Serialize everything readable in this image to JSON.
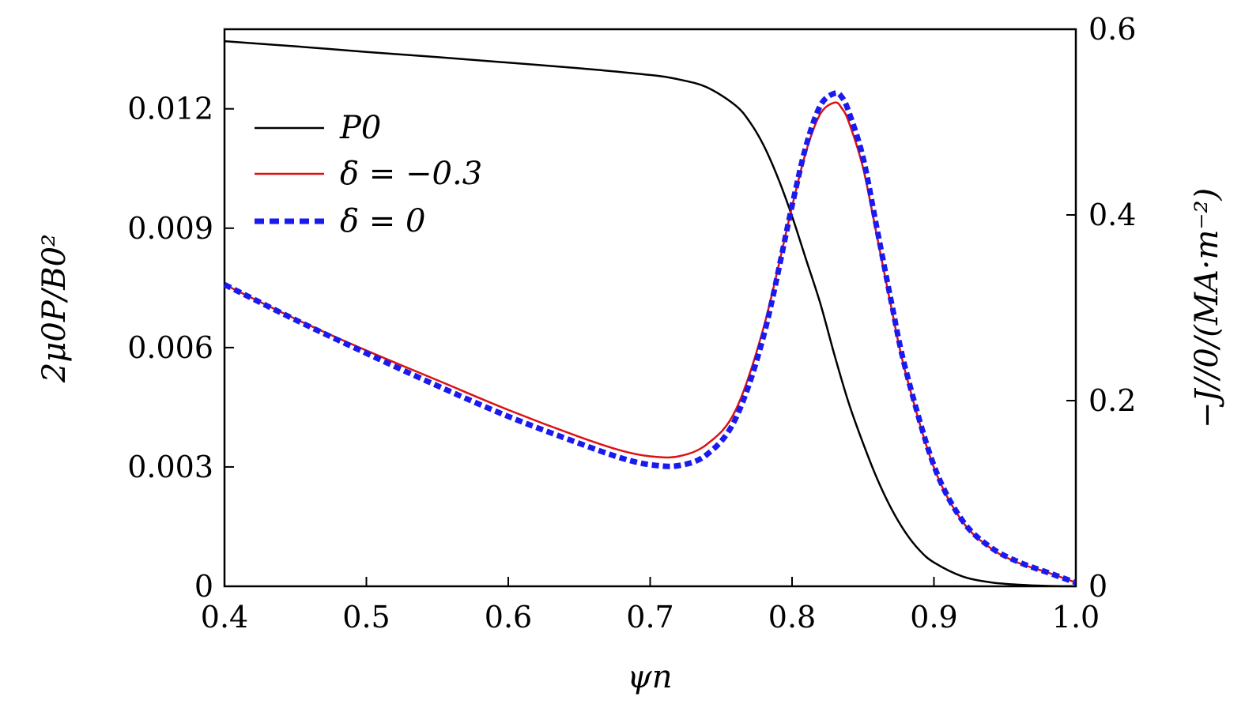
{
  "chart_data": {
    "type": "line",
    "xlabel": "ψn",
    "ylabel_left": "2μ0P/B0²",
    "ylabel_right": "−J//0/(MA·m⁻²)",
    "xlim": [
      0.4,
      1.0
    ],
    "ylim_left": [
      0,
      0.014
    ],
    "ylim_right": [
      0,
      0.6
    ],
    "x_ticks": [
      "0.4",
      "0.5",
      "0.6",
      "0.7",
      "0.8",
      "0.9",
      "1.0"
    ],
    "y_left_ticks": [
      "0",
      "0.003",
      "0.006",
      "0.009",
      "0.012"
    ],
    "y_right_ticks": [
      "0",
      "0.2",
      "0.4",
      "0.6"
    ],
    "grid": false,
    "legend_position": "upper-left",
    "series": [
      {
        "name": "P0",
        "axis": "left",
        "color": "#000000",
        "style": "solid",
        "x": [
          0.4,
          0.45,
          0.5,
          0.55,
          0.6,
          0.65,
          0.7,
          0.72,
          0.74,
          0.76,
          0.77,
          0.78,
          0.79,
          0.8,
          0.81,
          0.82,
          0.83,
          0.84,
          0.85,
          0.86,
          0.87,
          0.88,
          0.89,
          0.9,
          0.92,
          0.94,
          0.96,
          0.98,
          1.0
        ],
        "values": [
          0.0137,
          0.01357,
          0.01343,
          0.0133,
          0.01316,
          0.01302,
          0.01285,
          0.01274,
          0.01254,
          0.01209,
          0.01168,
          0.01108,
          0.01027,
          0.0093,
          0.0082,
          0.0071,
          0.0058,
          0.0046,
          0.0036,
          0.0027,
          0.00195,
          0.00135,
          0.0009,
          0.0006,
          0.00025,
          0.0001,
          4e-05,
          1e-05,
          0.0
        ]
      },
      {
        "name": "δ = −0.3",
        "axis": "right",
        "color": "#dd1111",
        "style": "solid",
        "x": [
          0.4,
          0.45,
          0.5,
          0.55,
          0.6,
          0.65,
          0.68,
          0.7,
          0.72,
          0.74,
          0.76,
          0.78,
          0.8,
          0.81,
          0.82,
          0.83,
          0.835,
          0.84,
          0.85,
          0.86,
          0.87,
          0.88,
          0.9,
          0.92,
          0.94,
          0.96,
          0.98,
          1.0
        ],
        "values": [
          0.325,
          0.288,
          0.254,
          0.222,
          0.19,
          0.161,
          0.146,
          0.14,
          0.14,
          0.153,
          0.189,
          0.279,
          0.409,
          0.469,
          0.509,
          0.521,
          0.515,
          0.5,
          0.451,
          0.376,
          0.3,
          0.23,
          0.128,
          0.07,
          0.041,
          0.025,
          0.015,
          0.004
        ]
      },
      {
        "name": "δ = 0",
        "axis": "right",
        "color": "#1a1aee",
        "style": "dashed",
        "x": [
          0.4,
          0.45,
          0.5,
          0.55,
          0.6,
          0.65,
          0.68,
          0.7,
          0.72,
          0.74,
          0.76,
          0.78,
          0.8,
          0.81,
          0.82,
          0.83,
          0.835,
          0.84,
          0.85,
          0.86,
          0.87,
          0.88,
          0.9,
          0.92,
          0.94,
          0.96,
          0.98,
          1.0
        ],
        "values": [
          0.325,
          0.287,
          0.251,
          0.216,
          0.183,
          0.154,
          0.138,
          0.131,
          0.13,
          0.142,
          0.18,
          0.27,
          0.41,
          0.475,
          0.518,
          0.531,
          0.527,
          0.511,
          0.462,
          0.384,
          0.306,
          0.234,
          0.13,
          0.071,
          0.042,
          0.026,
          0.015,
          0.004
        ]
      }
    ]
  },
  "legend": [
    {
      "label": "P0",
      "color": "#000000",
      "style": "solid"
    },
    {
      "label": "δ = −0.3",
      "color": "#dd1111",
      "style": "solid"
    },
    {
      "label": "δ = 0",
      "color": "#1a1aee",
      "style": "dashed"
    }
  ]
}
